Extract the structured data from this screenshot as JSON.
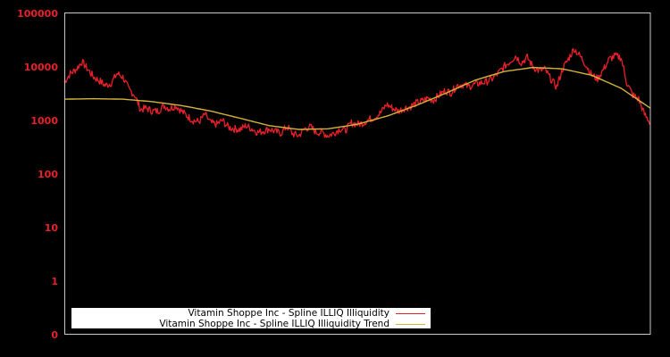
{
  "chart_data": {
    "type": "line",
    "title": "",
    "xlabel": "",
    "ylabel": "",
    "yscale": "log",
    "y_tick_labels": [
      "100000",
      "10000",
      "1000",
      "100",
      "10",
      "1",
      "0"
    ],
    "ylim": [
      0,
      100000
    ],
    "grid": false,
    "legend_position": "bottom-left",
    "background": "#000000",
    "frame_color": "#c8c8c8",
    "series": [
      {
        "name": "Vitamin Shoppe Inc - Spline ILLIQ Illiquidity",
        "color": "#e8202a",
        "x_frac": [
          0.0,
          0.01,
          0.02,
          0.03,
          0.04,
          0.05,
          0.06,
          0.07,
          0.08,
          0.09,
          0.1,
          0.11,
          0.12,
          0.13,
          0.14,
          0.15,
          0.16,
          0.17,
          0.18,
          0.19,
          0.2,
          0.21,
          0.22,
          0.23,
          0.24,
          0.25,
          0.26,
          0.27,
          0.28,
          0.29,
          0.3,
          0.31,
          0.32,
          0.33,
          0.34,
          0.35,
          0.36,
          0.37,
          0.38,
          0.39,
          0.4,
          0.41,
          0.42,
          0.43,
          0.44,
          0.45,
          0.46,
          0.47,
          0.48,
          0.49,
          0.5,
          0.51,
          0.52,
          0.53,
          0.54,
          0.55,
          0.56,
          0.57,
          0.58,
          0.59,
          0.6,
          0.61,
          0.62,
          0.63,
          0.64,
          0.65,
          0.66,
          0.67,
          0.68,
          0.69,
          0.7,
          0.71,
          0.72,
          0.73,
          0.74,
          0.75,
          0.76,
          0.77,
          0.78,
          0.79,
          0.8,
          0.81,
          0.82,
          0.83,
          0.84,
          0.85,
          0.86,
          0.87,
          0.88,
          0.89,
          0.9,
          0.91,
          0.92,
          0.93,
          0.94,
          0.95,
          0.96,
          0.97,
          0.98,
          0.99,
          1.0
        ],
        "values": [
          5200,
          7500,
          9000,
          12500,
          9000,
          6500,
          5500,
          4500,
          5000,
          7500,
          6500,
          3800,
          3000,
          1600,
          1700,
          1500,
          1500,
          1900,
          1650,
          1900,
          1500,
          1200,
          1000,
          950,
          1300,
          900,
          850,
          1000,
          750,
          700,
          680,
          800,
          700,
          600,
          640,
          700,
          620,
          580,
          780,
          560,
          520,
          700,
          760,
          600,
          600,
          520,
          580,
          700,
          660,
          900,
          850,
          900,
          1050,
          1150,
          1400,
          2000,
          1700,
          1500,
          1700,
          1800,
          2100,
          2300,
          2600,
          2400,
          3000,
          3600,
          3300,
          4500,
          4700,
          4300,
          4700,
          5000,
          5300,
          6000,
          7500,
          10000,
          12500,
          16000,
          12000,
          15000,
          10000,
          8500,
          9000,
          6000,
          4200,
          9000,
          14000,
          22000,
          16000,
          11000,
          7000,
          6000,
          9000,
          14000,
          16000,
          15000,
          5000,
          3000,
          2500,
          1300,
          900
        ]
      },
      {
        "name": "Vitamin Shoppe Inc - Spline ILLIQ Illiquidity Trend",
        "color": "#d4b43a",
        "x_frac": [
          0.0,
          0.05,
          0.1,
          0.15,
          0.2,
          0.25,
          0.3,
          0.35,
          0.4,
          0.45,
          0.5,
          0.55,
          0.6,
          0.65,
          0.7,
          0.75,
          0.8,
          0.85,
          0.9,
          0.95,
          1.0
        ],
        "values": [
          2500,
          2550,
          2500,
          2250,
          1900,
          1500,
          1100,
          800,
          680,
          700,
          850,
          1200,
          1900,
          3200,
          5600,
          8200,
          9800,
          9200,
          7000,
          4000,
          1700
        ]
      }
    ]
  },
  "legend": {
    "items": [
      {
        "label": "Vitamin Shoppe Inc - Spline ILLIQ Illiquidity",
        "color": "#e8202a"
      },
      {
        "label": "Vitamin Shoppe Inc - Spline ILLIQ Illiquidity Trend",
        "color": "#d4b43a"
      }
    ]
  }
}
